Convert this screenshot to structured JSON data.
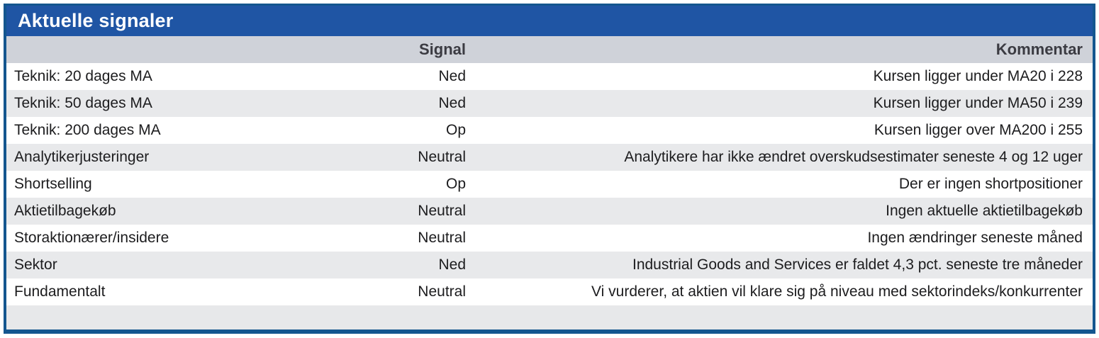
{
  "table": {
    "title": "Aktuelle signaler",
    "header": {
      "label": "",
      "signal": "Signal",
      "kommentar": "Kommentar"
    },
    "rows": [
      {
        "label": "Teknik: 20 dages MA",
        "signal": "Ned",
        "kommentar": "Kursen ligger under MA20 i 228"
      },
      {
        "label": "Teknik: 50 dages MA",
        "signal": "Ned",
        "kommentar": "Kursen ligger under MA50 i 239"
      },
      {
        "label": "Teknik: 200 dages MA",
        "signal": "Op",
        "kommentar": "Kursen ligger over MA200 i 255"
      },
      {
        "label": "Analytikerjusteringer",
        "signal": "Neutral",
        "kommentar": "Analytikere har ikke ændret overskudsestimater seneste 4 og 12 uger"
      },
      {
        "label": "Shortselling",
        "signal": "Op",
        "kommentar": "Der er ingen shortpositioner"
      },
      {
        "label": "Aktietilbagekøb",
        "signal": "Neutral",
        "kommentar": "Ingen aktuelle aktietilbagekøb"
      },
      {
        "label": "Storaktionærer/insidere",
        "signal": "Neutral",
        "kommentar": "Ingen ændringer seneste måned"
      },
      {
        "label": "Sektor",
        "signal": "Ned",
        "kommentar": "Industrial Goods and Services er faldet 4,3 pct. seneste tre måneder"
      },
      {
        "label": "Fundamentalt",
        "signal": "Neutral",
        "kommentar": "Vi vurderer, at aktien vil klare sig på niveau med sektorindeks/konkurrenter"
      }
    ],
    "colors": {
      "title_bar": "#1F55A4",
      "border": "#14568F",
      "header_row": "#CFD2D9",
      "stripe_row": "#E8E9EB",
      "footer_row": "#E7E8EA",
      "body_text": "#1C1C1E",
      "header_text": "#3B3B42"
    }
  },
  "chart_data": {
    "type": "table",
    "title": "Aktuelle signaler",
    "columns": [
      "",
      "Signal",
      "Kommentar"
    ],
    "rows": [
      [
        "Teknik: 20 dages MA",
        "Ned",
        "Kursen ligger under MA20 i 228"
      ],
      [
        "Teknik: 50 dages MA",
        "Ned",
        "Kursen ligger under MA50 i 239"
      ],
      [
        "Teknik: 200 dages MA",
        "Op",
        "Kursen ligger over MA200 i 255"
      ],
      [
        "Analytikerjusteringer",
        "Neutral",
        "Analytikere har ikke ændret overskudsestimater seneste 4 og 12 uger"
      ],
      [
        "Shortselling",
        "Op",
        "Der er ingen shortpositioner"
      ],
      [
        "Aktietilbagekøb",
        "Neutral",
        "Ingen aktuelle aktietilbagekøb"
      ],
      [
        "Storaktionærer/insidere",
        "Neutral",
        "Ingen ændringer seneste måned"
      ],
      [
        "Sektor",
        "Ned",
        "Industrial Goods and Services er faldet 4,3 pct. seneste tre måneder"
      ],
      [
        "Fundamentalt",
        "Neutral",
        "Vi vurderer, at aktien vil klare sig på niveau med sektorindeks/konkurrenter"
      ]
    ],
    "layout_hints": {
      "signal_column_alignment": "right",
      "kommentar_column_alignment": "right",
      "zebra_striping": true
    }
  }
}
